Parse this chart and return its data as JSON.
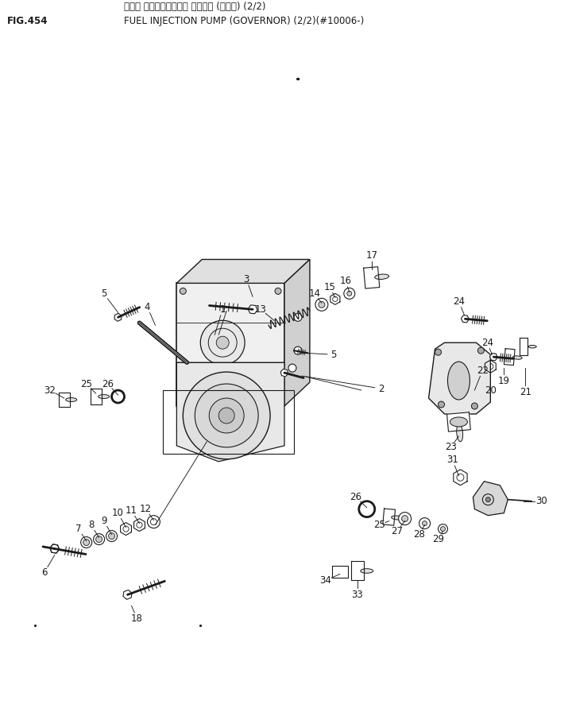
{
  "title_line1": "フェル インジェクション ホンプ゚ (カバナ) (2/2)",
  "title_line2": "FUEL INJECTION PUMP (GOVERNOR) (2/2)(#10006-)",
  "fig_label": "FIG.454",
  "bg_color": "#ffffff",
  "lc": "#1a1a1a",
  "dot1": [
    0.52,
    0.108
  ],
  "dot2": [
    0.06,
    0.878
  ],
  "dot3": [
    0.35,
    0.878
  ]
}
